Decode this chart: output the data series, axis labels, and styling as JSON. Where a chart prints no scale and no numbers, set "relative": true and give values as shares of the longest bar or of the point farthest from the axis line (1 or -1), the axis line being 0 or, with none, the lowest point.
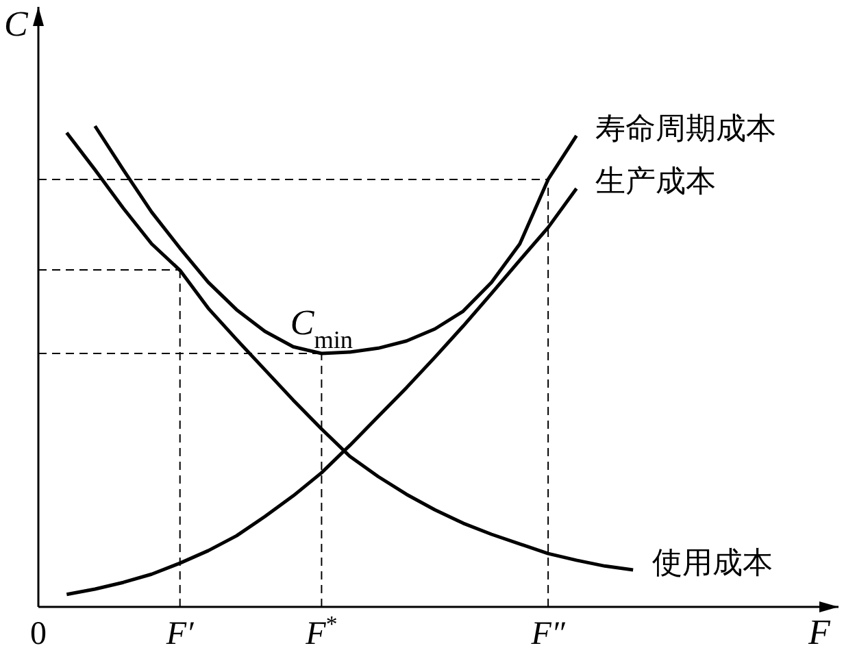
{
  "chart_data": {
    "type": "line",
    "relative": true,
    "xlabel": "F",
    "ylabel": "C",
    "categories": [
      "0",
      null,
      null,
      null,
      null,
      "F′",
      null,
      null,
      null,
      null,
      "F$^{*}$",
      null,
      null,
      null,
      null,
      null,
      null,
      null,
      "F″",
      null,
      null,
      null
    ],
    "marker": "none",
    "line_style": "solid",
    "legend": false,
    "grid": false,
    "series": [
      {
        "name": "寿命周期成本",
        "color": "#000000",
        "values": [
          null,
          null,
          1,
          0.909,
          0.821,
          0.746,
          0.675,
          0.618,
          0.573,
          0.541,
          0.527,
          0.53,
          0.538,
          0.553,
          0.578,
          0.615,
          0.675,
          0.755,
          0.889,
          0.98,
          null,
          null
        ]
      },
      {
        "name": "生产成本",
        "color": "#000000",
        "values": [
          null,
          0.026,
          0.037,
          0.051,
          0.068,
          0.091,
          0.117,
          0.148,
          0.188,
          0.231,
          0.279,
          0.336,
          0.396,
          0.456,
          0.519,
          0.584,
          0.652,
          0.721,
          0.789,
          0.87,
          null,
          null
        ]
      },
      {
        "name": "使用成本",
        "color": "#000000",
        "values": [
          null,
          0.986,
          0.909,
          0.829,
          0.755,
          0.7,
          0.621,
          0.556,
          0.493,
          0.43,
          0.37,
          0.313,
          0.271,
          0.234,
          0.202,
          0.174,
          0.151,
          0.131,
          0.111,
          0.097,
          0.085,
          0.077
        ]
      }
    ],
    "ref_lines": [
      {
        "axis": "y",
        "value": 0.701,
        "line_style": "dashed"
      },
      {
        "axis": "y",
        "value": 0.527,
        "line_style": "dashed"
      },
      {
        "axis": "y",
        "value": 0.889,
        "line_style": "dashed"
      },
      {
        "axis": "x",
        "value": "F′",
        "line_style": "dashed"
      },
      {
        "axis": "x",
        "value": "F$^{*}$",
        "line_style": "dashed"
      },
      {
        "axis": "x",
        "value": "F″",
        "line_style": "dashed"
      }
    ],
    "annotations": [
      {
        "text": "C$_{min}$",
        "x": "F$^{*}$",
        "y": 0.527
      }
    ]
  }
}
